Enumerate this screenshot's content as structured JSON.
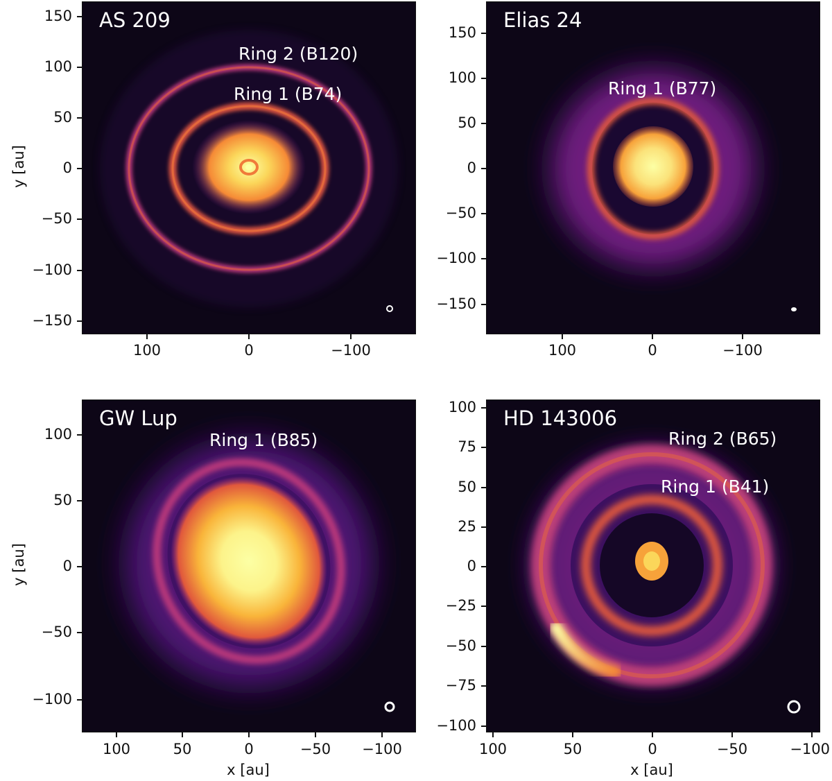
{
  "panels": [
    {
      "title": "AS 209",
      "ring_labels": [
        "Ring 2 (B120)",
        "Ring 1 (B74)"
      ],
      "y_ticks": [
        "150",
        "100",
        "50",
        "0",
        "−50",
        "−100",
        "−150"
      ],
      "x_ticks": [
        "100",
        "0",
        "−100"
      ],
      "ylabel": "y [au]",
      "xlabel": ""
    },
    {
      "title": "Elias 24",
      "ring_labels": [
        "Ring 1 (B77)"
      ],
      "y_ticks": [
        "150",
        "100",
        "50",
        "0",
        "−50",
        "−100",
        "−150"
      ],
      "x_ticks": [
        "100",
        "0",
        "−100"
      ],
      "ylabel": "",
      "xlabel": ""
    },
    {
      "title": "GW Lup",
      "ring_labels": [
        "Ring 1 (B85)"
      ],
      "y_ticks": [
        "100",
        "50",
        "0",
        "−50",
        "−100"
      ],
      "x_ticks": [
        "100",
        "50",
        "0",
        "−50",
        "−100"
      ],
      "ylabel": "y [au]",
      "xlabel": "x [au]"
    },
    {
      "title": "HD 143006",
      "ring_labels": [
        "Ring 2 (B65)",
        "Ring 1 (B41)"
      ],
      "y_ticks": [
        "100",
        "75",
        "50",
        "25",
        "0",
        "−25",
        "−50",
        "−75",
        "−100"
      ],
      "x_ticks": [
        "100",
        "50",
        "0",
        "−50",
        "−100"
      ],
      "ylabel": "",
      "xlabel": "x [au]"
    }
  ],
  "colormap": [
    "#0d0617",
    "#2a0b4a",
    "#6a1a7a",
    "#b9377a",
    "#ee6a3a",
    "#fbb33a",
    "#fcffa4"
  ]
}
